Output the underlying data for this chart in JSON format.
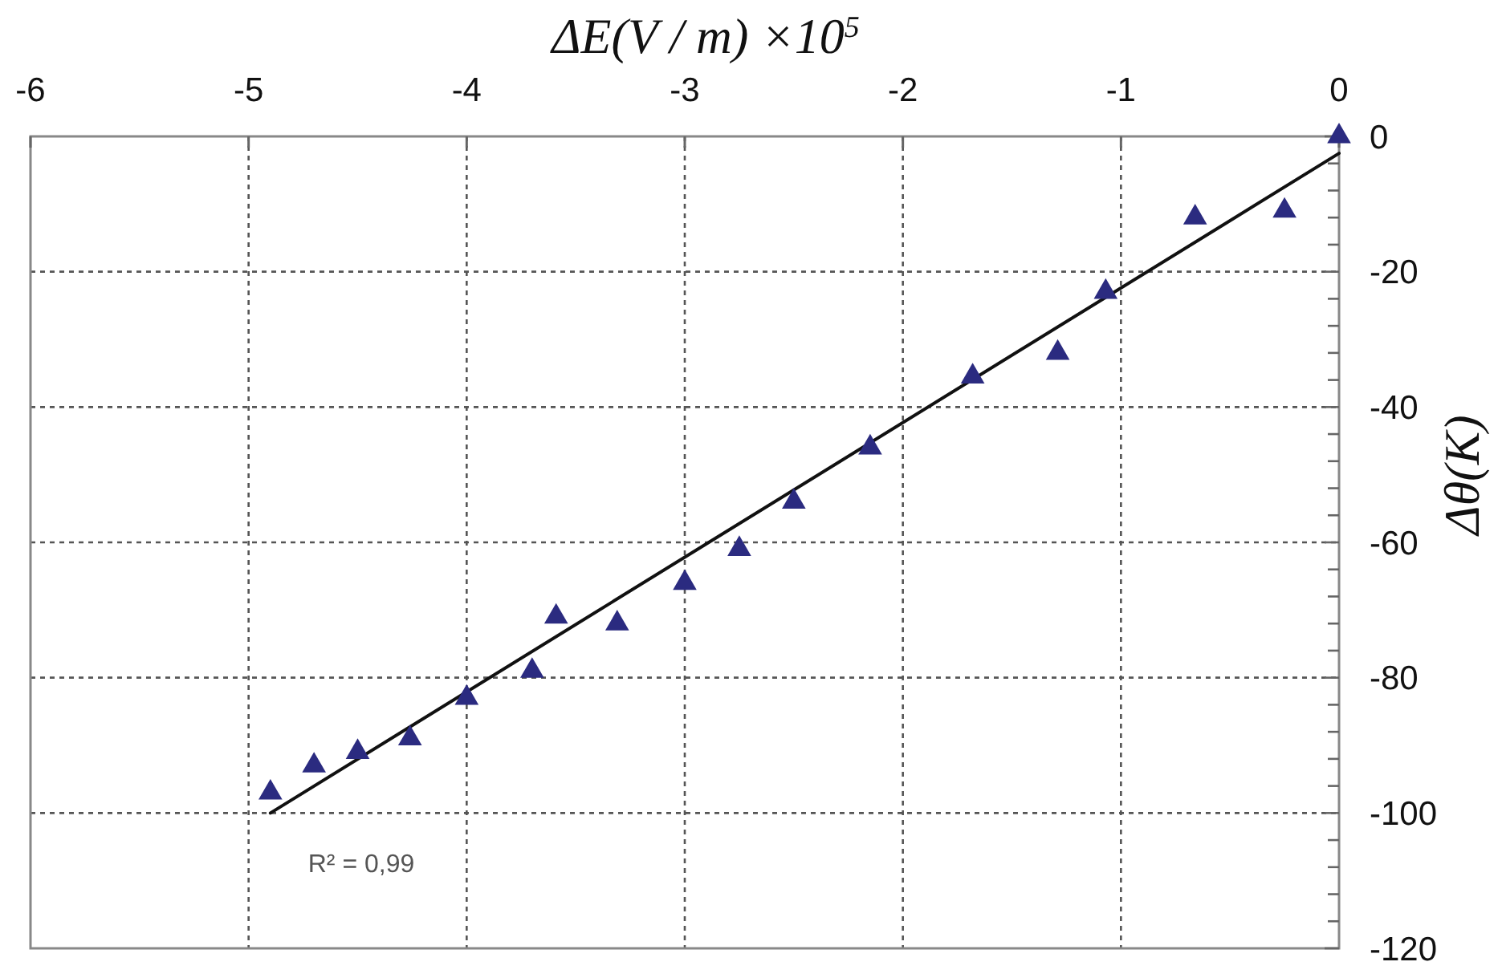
{
  "chart_data": {
    "type": "scatter",
    "xlabel": "ΔE(V / m) ×10$^{5}$",
    "ylabel": "Δθ(K)",
    "xlim": [
      -6,
      0
    ],
    "xticks": [
      -6,
      -5,
      -4,
      -3,
      -2,
      -1,
      0
    ],
    "ylim": [
      -120,
      0
    ],
    "yticks": [
      0,
      {
        "value": -4,
        "label": null
      },
      {
        "value": -8,
        "label": null
      },
      {
        "value": -12,
        "label": null
      },
      {
        "value": -16,
        "label": null
      },
      -20,
      {
        "value": -24,
        "label": null
      },
      {
        "value": -28,
        "label": null
      },
      {
        "value": -32,
        "label": null
      },
      {
        "value": -36,
        "label": null
      },
      -40,
      {
        "value": -44,
        "label": null
      },
      {
        "value": -48,
        "label": null
      },
      {
        "value": -52,
        "label": null
      },
      {
        "value": -56,
        "label": null
      },
      -60,
      {
        "value": -64,
        "label": null
      },
      {
        "value": -68,
        "label": null
      },
      {
        "value": -72,
        "label": null
      },
      {
        "value": -76,
        "label": null
      },
      -80,
      {
        "value": -84,
        "label": null
      },
      {
        "value": -88,
        "label": null
      },
      {
        "value": -92,
        "label": null
      },
      {
        "value": -96,
        "label": null
      },
      -100,
      {
        "value": -104,
        "label": null
      },
      {
        "value": -108,
        "label": null
      },
      {
        "value": -112,
        "label": null
      },
      {
        "value": -116,
        "label": null
      },
      -120
    ],
    "grid": true,
    "series": [
      {
        "type": "line",
        "color": "#111111",
        "marker": "none",
        "line_style": "solid",
        "x": [
          -4.9,
          0
        ],
        "values": [
          -100,
          -2.5
        ]
      },
      {
        "color": "#2b2b80",
        "marker": "triangle",
        "x": [
          0,
          -0.25,
          -0.66,
          -1.07,
          -1.29,
          -1.68,
          -2.15,
          -2.5,
          -2.75,
          -3.0,
          -3.31,
          -3.59,
          -3.7,
          -4.0,
          -4.26,
          -4.5,
          -4.7,
          -4.9
        ],
        "values": [
          0,
          -11,
          -12,
          -23,
          -32,
          -35.5,
          -46,
          -54,
          -61,
          -66,
          -72,
          -71,
          -79,
          -83,
          -89,
          -91,
          -93,
          -97
        ]
      }
    ],
    "annotations": [
      "R² = 0,99"
    ]
  }
}
